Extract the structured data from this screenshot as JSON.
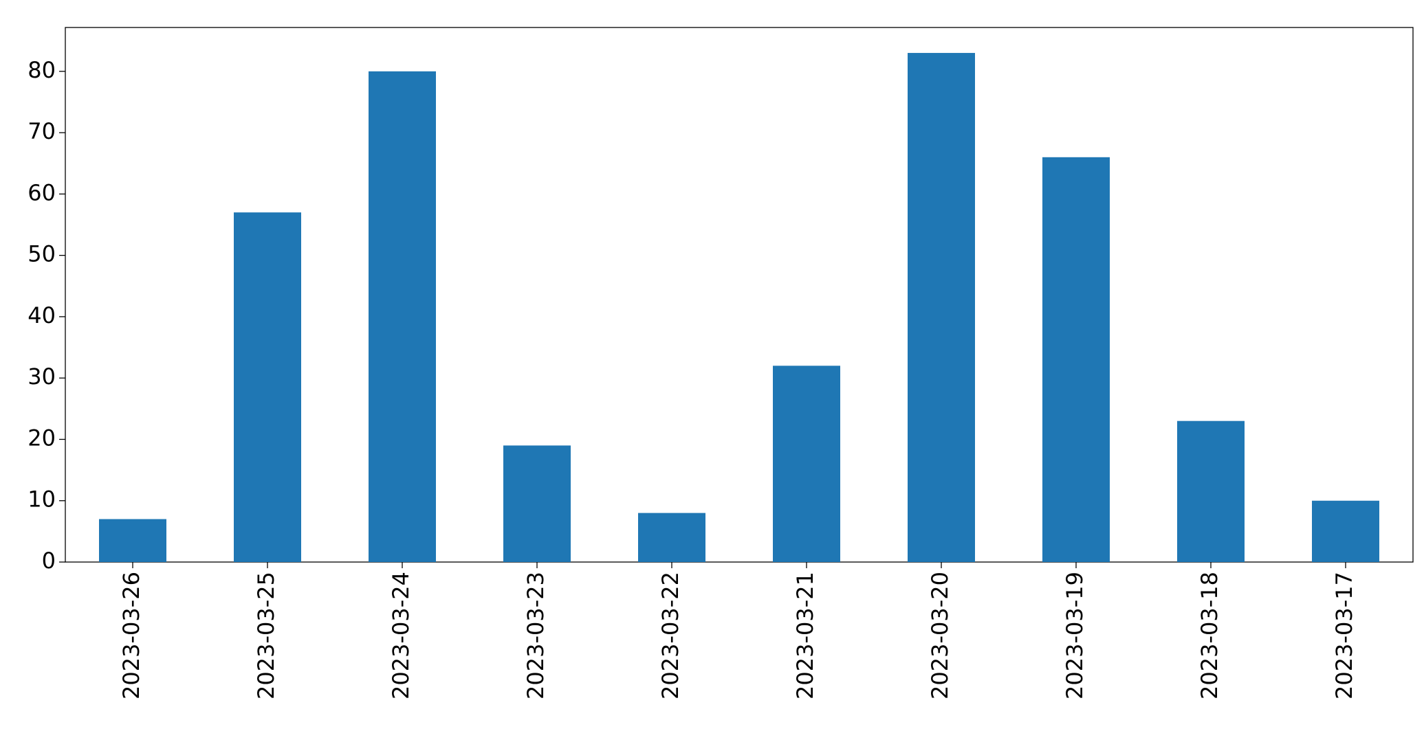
{
  "chart_data": {
    "type": "bar",
    "categories": [
      "2023-03-26",
      "2023-03-25",
      "2023-03-24",
      "2023-03-23",
      "2023-03-22",
      "2023-03-21",
      "2023-03-20",
      "2023-03-19",
      "2023-03-18",
      "2023-03-17"
    ],
    "values": [
      7,
      57,
      80,
      19,
      8,
      32,
      83,
      66,
      23,
      10
    ],
    "color": "#1f77b4",
    "ylim": [
      0,
      87.15
    ],
    "yticks": [
      0,
      10,
      20,
      30,
      40,
      50,
      60,
      70,
      80
    ],
    "grid": false
  }
}
